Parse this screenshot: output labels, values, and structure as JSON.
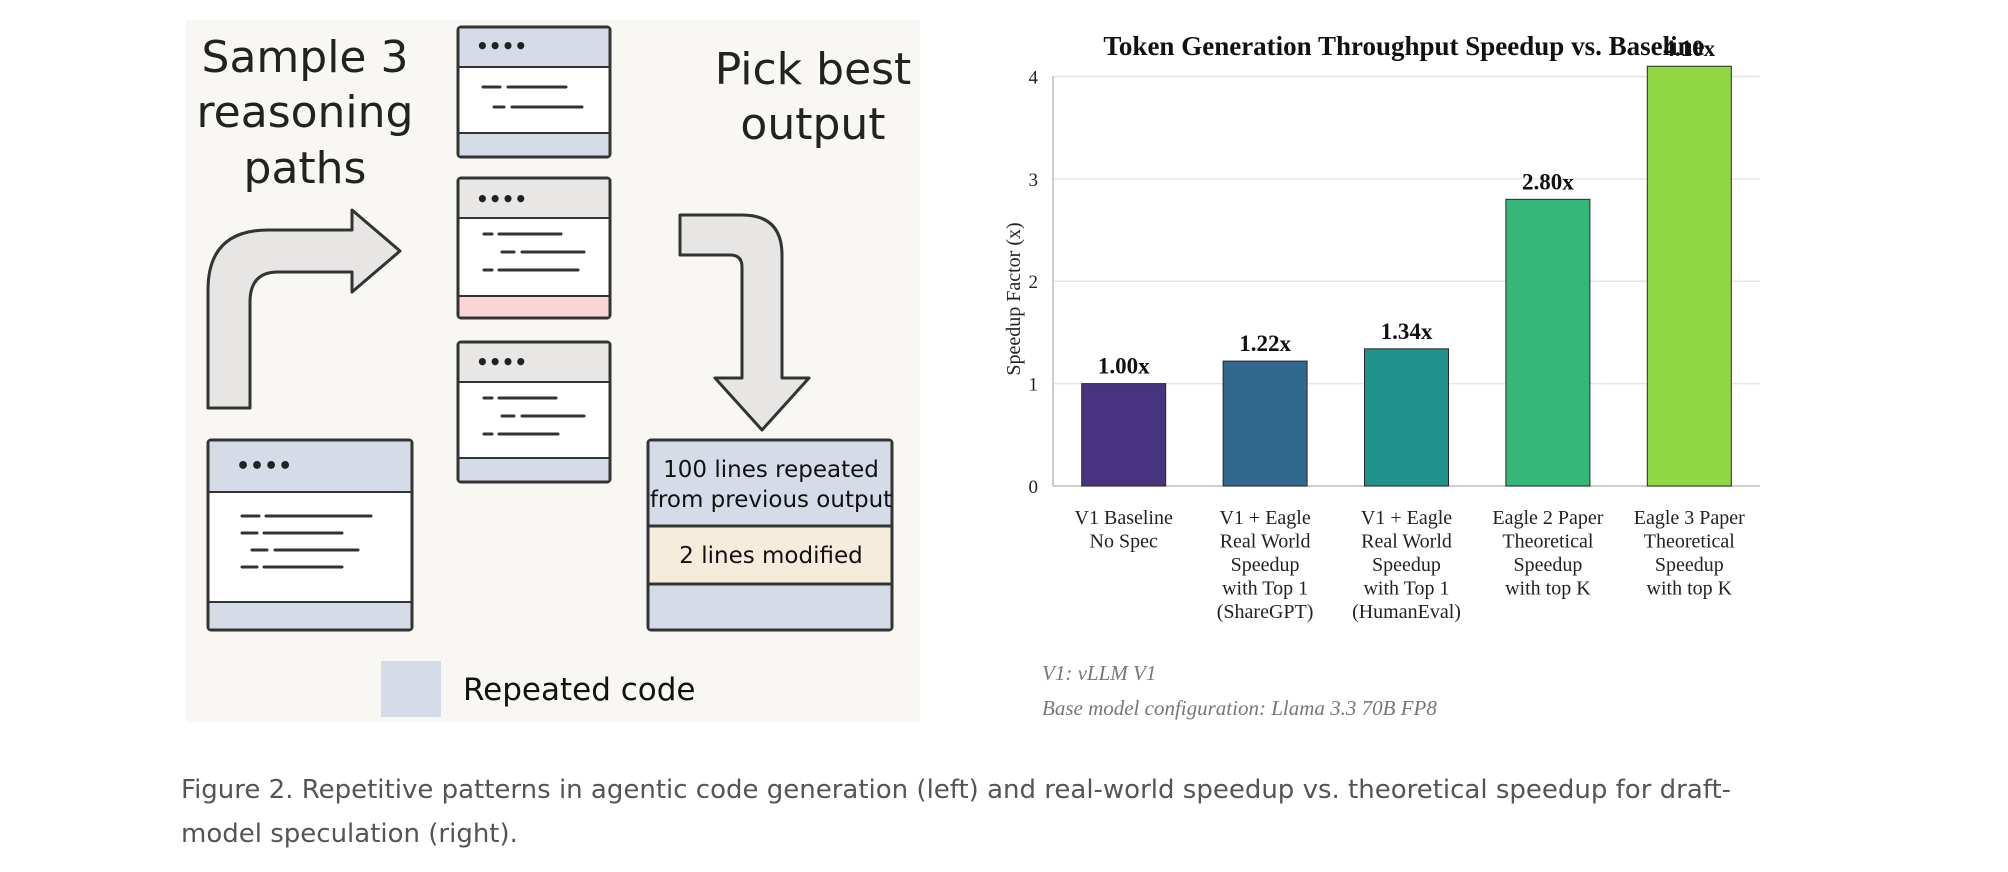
{
  "left": {
    "sample_text": [
      "Sample 3",
      "reasoning",
      "paths"
    ],
    "pick_text": [
      "Pick best",
      "output"
    ],
    "dots": "••••",
    "box_repeated": [
      "100 lines repeated",
      "from previous output"
    ],
    "box_modified": "2 lines modified",
    "legend_label": "Repeated code",
    "colors": {
      "repeated": "#d5dce7",
      "modified": "#f6ecdc",
      "error": "#fbd5d6",
      "header_gray": "#e9e7e6",
      "panel": "#f9f7f4"
    },
    "icons": [
      "curved-arrow-icon",
      "down-arrow-icon",
      "code-window-icon"
    ]
  },
  "chart_data": {
    "type": "bar",
    "title": "Token Generation Throughput Speedup vs. Baseline",
    "ylabel": "Speedup Factor (x)",
    "xlabel": "",
    "ylim": [
      0,
      4.2
    ],
    "yticks": [
      0,
      1,
      2,
      3,
      4
    ],
    "grid": true,
    "categories": [
      [
        "V1 Baseline",
        "No Spec"
      ],
      [
        "V1 + Eagle",
        "Real World",
        "Speedup",
        "with Top 1",
        "(ShareGPT)"
      ],
      [
        "V1 + Eagle",
        "Real World",
        "Speedup",
        "with Top 1",
        "(HumanEval)"
      ],
      [
        "Eagle 2 Paper",
        "Theoretical",
        "Speedup",
        "with top K"
      ],
      [
        "Eagle 3 Paper",
        "Theoretical",
        "Speedup",
        "with top K"
      ]
    ],
    "values": [
      1.0,
      1.22,
      1.34,
      2.8,
      4.1
    ],
    "value_labels": [
      "1.00x",
      "1.22x",
      "1.34x",
      "2.80x",
      "4.10x"
    ],
    "colors": [
      "#463480",
      "#30688e",
      "#1f928b",
      "#35b779",
      "#8fd744"
    ],
    "notes": [
      "V1: vLLM V1",
      "Base model configuration: Llama 3.3 70B FP8"
    ]
  },
  "caption": "Figure 2. Repetitive patterns in agentic code generation (left) and real-world speedup vs. theoretical speedup for draft-model speculation (right)."
}
